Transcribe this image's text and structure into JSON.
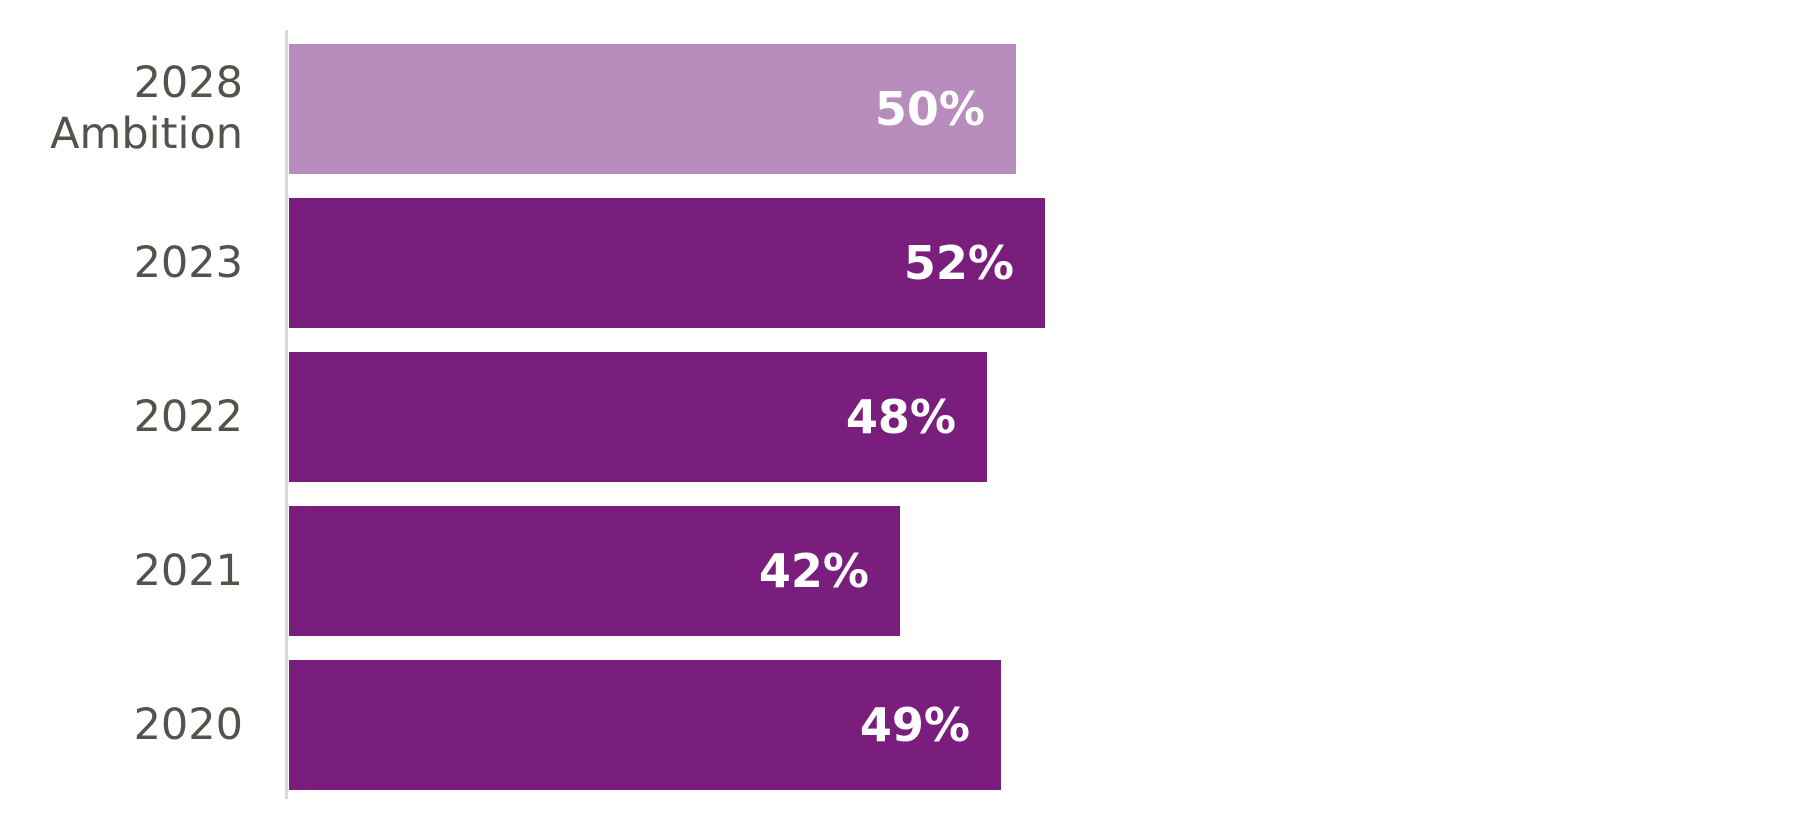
{
  "chart_data": {
    "type": "bar",
    "orientation": "horizontal",
    "categories": [
      "2028\nAmbition",
      "2023",
      "2022",
      "2021",
      "2020"
    ],
    "values": [
      50,
      52,
      48,
      42,
      49
    ],
    "value_labels": [
      "50%",
      "52%",
      "48%",
      "42%",
      "49%"
    ],
    "bar_colors": [
      "#B98CBE",
      "#7A1E7E",
      "#7A1E7E",
      "#7A1E7E",
      "#7A1E7E"
    ],
    "title": "",
    "xlabel": "",
    "ylabel": "",
    "xlim": [
      0,
      52
    ],
    "grid": false,
    "legend": false
  },
  "colors": {
    "bar_primary": "#7A1E7E",
    "bar_ambition_tint": "#B98CBE",
    "category_label": "#53524B",
    "value_label": "#FFFFFF",
    "axis_line": "#D9D9D9",
    "background": "#FFFFFF"
  }
}
